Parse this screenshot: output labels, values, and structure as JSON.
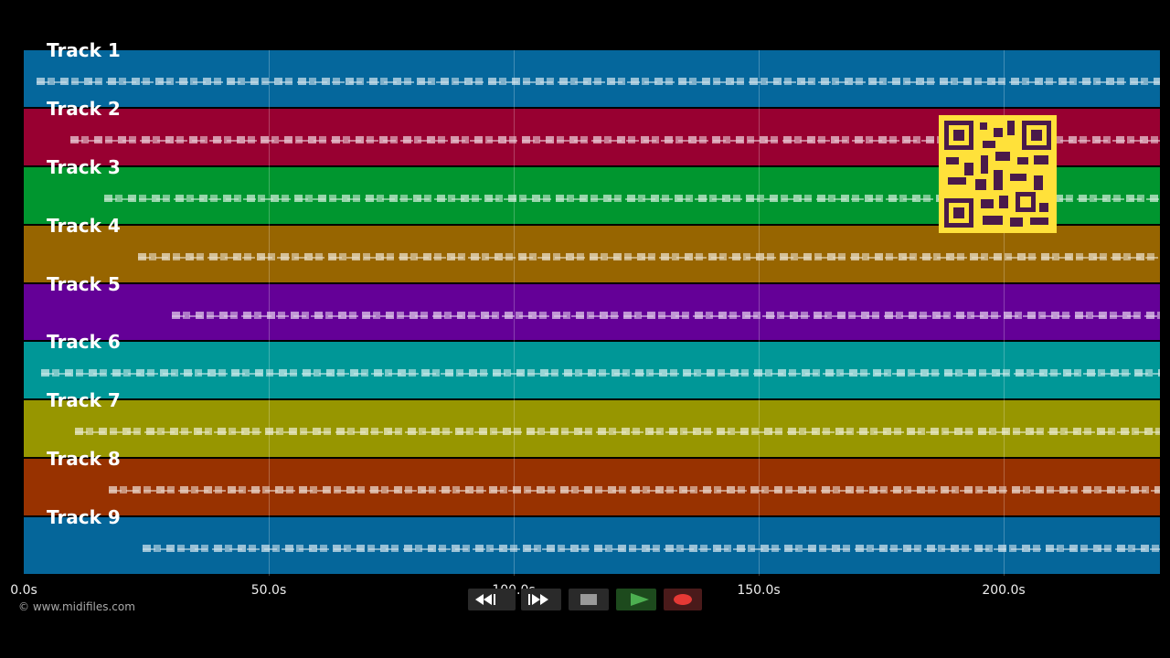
{
  "tracks": [
    {
      "label": "Track 1",
      "color": "#05679c"
    },
    {
      "label": "Track 2",
      "color": "#980031"
    },
    {
      "label": "Track 3",
      "color": "#00962f"
    },
    {
      "label": "Track 4",
      "color": "#976500"
    },
    {
      "label": "Track 5",
      "color": "#640097"
    },
    {
      "label": "Track 6",
      "color": "#009797"
    },
    {
      "label": "Track 7",
      "color": "#979600"
    },
    {
      "label": "Track 8",
      "color": "#983200"
    },
    {
      "label": "Track 9",
      "color": "#05669a"
    }
  ],
  "timeline": {
    "ticks": [
      "0.0s",
      "50.0s",
      "100.0s",
      "150.0s",
      "200.0s"
    ]
  },
  "footer": {
    "copyright": "© www.midifiles.com"
  }
}
